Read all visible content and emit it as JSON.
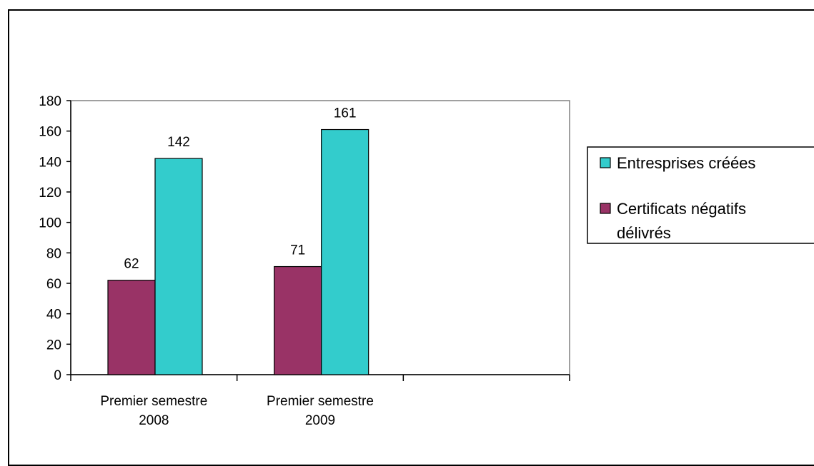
{
  "chart_data": {
    "type": "bar",
    "title": "",
    "xlabel": "",
    "ylabel": "",
    "categories": [
      [
        "Premier semestre",
        "2008"
      ],
      [
        "Premier semestre",
        "2009"
      ],
      [
        "",
        ""
      ]
    ],
    "series": [
      {
        "name": "Certificats négatifs délivrés",
        "legend_lines": [
          "Certificats négatifs",
          "délivrés"
        ],
        "color": "#993366",
        "values": [
          62,
          71,
          null
        ]
      },
      {
        "name": "Entresprises créées",
        "legend_lines": [
          "Entresprises créées"
        ],
        "color": "#33CCCC",
        "values": [
          142,
          161,
          null
        ]
      }
    ],
    "ylim": [
      0,
      180
    ],
    "ytick_step": 20,
    "grid": false,
    "legend": "right"
  }
}
